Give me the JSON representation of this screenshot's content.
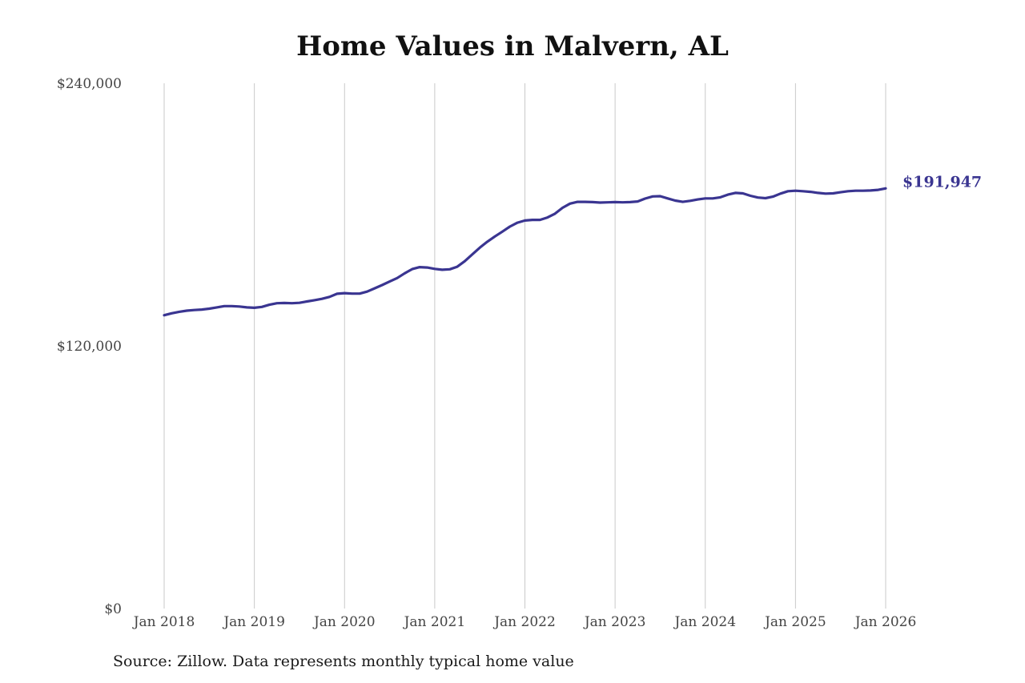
{
  "chart_data": {
    "type": "line",
    "title": "Home Values in Malvern, AL",
    "source": "Source: Zillow. Data represents monthly typical home value",
    "xlabel": "",
    "ylabel": "",
    "x_ticks": [
      "Jan 2018",
      "Jan 2019",
      "Jan 2020",
      "Jan 2021",
      "Jan 2022",
      "Jan 2023",
      "Jan 2024",
      "Jan 2025",
      "Jan 2026"
    ],
    "y_ticks": [
      "$0",
      "$120,000",
      "$240,000"
    ],
    "ylim": [
      0,
      240000
    ],
    "xlim": [
      2018.0,
      2026.0
    ],
    "grid": "vertical",
    "line_color": "#3a3591",
    "end_label": "$191,947",
    "series": [
      {
        "points": [
          [
            2018.0,
            134000
          ],
          [
            2018.083,
            134900
          ],
          [
            2018.167,
            135600
          ],
          [
            2018.25,
            136100
          ],
          [
            2018.333,
            136400
          ],
          [
            2018.417,
            136600
          ],
          [
            2018.5,
            137000
          ],
          [
            2018.583,
            137600
          ],
          [
            2018.667,
            138200
          ],
          [
            2018.75,
            138200
          ],
          [
            2018.833,
            138000
          ],
          [
            2018.917,
            137600
          ],
          [
            2019.0,
            137400
          ],
          [
            2019.083,
            137800
          ],
          [
            2019.167,
            138800
          ],
          [
            2019.25,
            139500
          ],
          [
            2019.333,
            139600
          ],
          [
            2019.417,
            139500
          ],
          [
            2019.5,
            139700
          ],
          [
            2019.583,
            140300
          ],
          [
            2019.667,
            140900
          ],
          [
            2019.75,
            141500
          ],
          [
            2019.833,
            142400
          ],
          [
            2019.917,
            143800
          ],
          [
            2020.0,
            144100
          ],
          [
            2020.083,
            143900
          ],
          [
            2020.167,
            143900
          ],
          [
            2020.25,
            144800
          ],
          [
            2020.333,
            146300
          ],
          [
            2020.417,
            147800
          ],
          [
            2020.5,
            149400
          ],
          [
            2020.583,
            151000
          ],
          [
            2020.667,
            153200
          ],
          [
            2020.75,
            155100
          ],
          [
            2020.833,
            156000
          ],
          [
            2020.917,
            155800
          ],
          [
            2021.0,
            155200
          ],
          [
            2021.083,
            154800
          ],
          [
            2021.167,
            155000
          ],
          [
            2021.25,
            156200
          ],
          [
            2021.333,
            158700
          ],
          [
            2021.417,
            161800
          ],
          [
            2021.5,
            164900
          ],
          [
            2021.583,
            167600
          ],
          [
            2021.667,
            170000
          ],
          [
            2021.75,
            172200
          ],
          [
            2021.833,
            174500
          ],
          [
            2021.917,
            176300
          ],
          [
            2022.0,
            177300
          ],
          [
            2022.083,
            177600
          ],
          [
            2022.167,
            177600
          ],
          [
            2022.25,
            178700
          ],
          [
            2022.333,
            180400
          ],
          [
            2022.417,
            183100
          ],
          [
            2022.5,
            185000
          ],
          [
            2022.583,
            185800
          ],
          [
            2022.667,
            185800
          ],
          [
            2022.75,
            185700
          ],
          [
            2022.833,
            185500
          ],
          [
            2022.917,
            185600
          ],
          [
            2023.0,
            185700
          ],
          [
            2023.083,
            185600
          ],
          [
            2023.167,
            185700
          ],
          [
            2023.25,
            186000
          ],
          [
            2023.333,
            187300
          ],
          [
            2023.417,
            188300
          ],
          [
            2023.5,
            188400
          ],
          [
            2023.583,
            187400
          ],
          [
            2023.667,
            186400
          ],
          [
            2023.75,
            185800
          ],
          [
            2023.833,
            186300
          ],
          [
            2023.917,
            186900
          ],
          [
            2024.0,
            187400
          ],
          [
            2024.083,
            187400
          ],
          [
            2024.167,
            187900
          ],
          [
            2024.25,
            189100
          ],
          [
            2024.333,
            189900
          ],
          [
            2024.417,
            189700
          ],
          [
            2024.5,
            188600
          ],
          [
            2024.583,
            187800
          ],
          [
            2024.667,
            187500
          ],
          [
            2024.75,
            188200
          ],
          [
            2024.833,
            189600
          ],
          [
            2024.917,
            190700
          ],
          [
            2025.0,
            190900
          ],
          [
            2025.083,
            190700
          ],
          [
            2025.167,
            190400
          ],
          [
            2025.25,
            189900
          ],
          [
            2025.333,
            189600
          ],
          [
            2025.417,
            189700
          ],
          [
            2025.5,
            190200
          ],
          [
            2025.583,
            190700
          ],
          [
            2025.667,
            190900
          ],
          [
            2025.75,
            190900
          ],
          [
            2025.833,
            191000
          ],
          [
            2025.917,
            191300
          ],
          [
            2026.0,
            191947
          ]
        ]
      }
    ]
  }
}
